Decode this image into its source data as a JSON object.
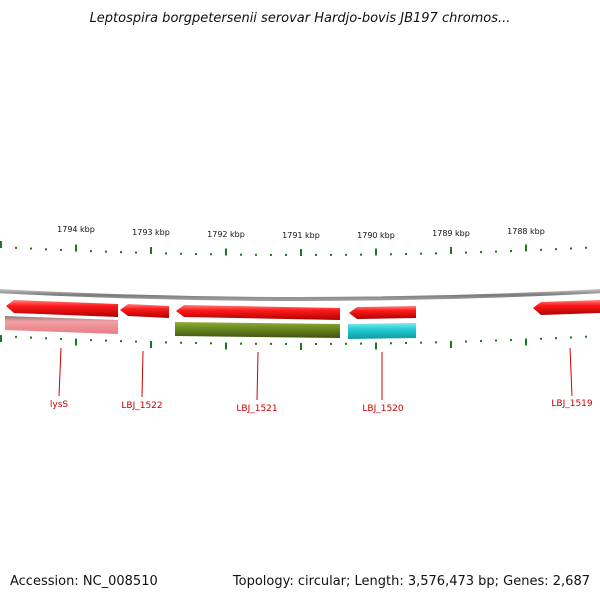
{
  "title": "Leptospira borgpetersenii serovar Hardjo-bovis JB197 chromos...",
  "footer": {
    "accession": "Accession: NC_008510",
    "info": "Topology: circular; Length: 3,576,473 bp; Genes: 2,687"
  },
  "scale_labels": [
    "1794 kbp",
    "1793 kbp",
    "1792 kbp",
    "1791 kbp",
    "1790 kbp",
    "1789 kbp",
    "1788 kbp"
  ],
  "gene_labels": [
    "lysS",
    "LBJ_1522",
    "LBJ_1521",
    "LBJ_1520",
    "LBJ_1519"
  ],
  "colors": {
    "backbone": "#8a8a8a",
    "ticks": "#1a7a1a",
    "cds": "#ff1a1a",
    "gene_label": "#cc0000",
    "lysS_feature": "#f08a90",
    "LBJ_1521_feature": "#6b8a1e",
    "LBJ_1520_feature": "#22ccd4"
  }
}
